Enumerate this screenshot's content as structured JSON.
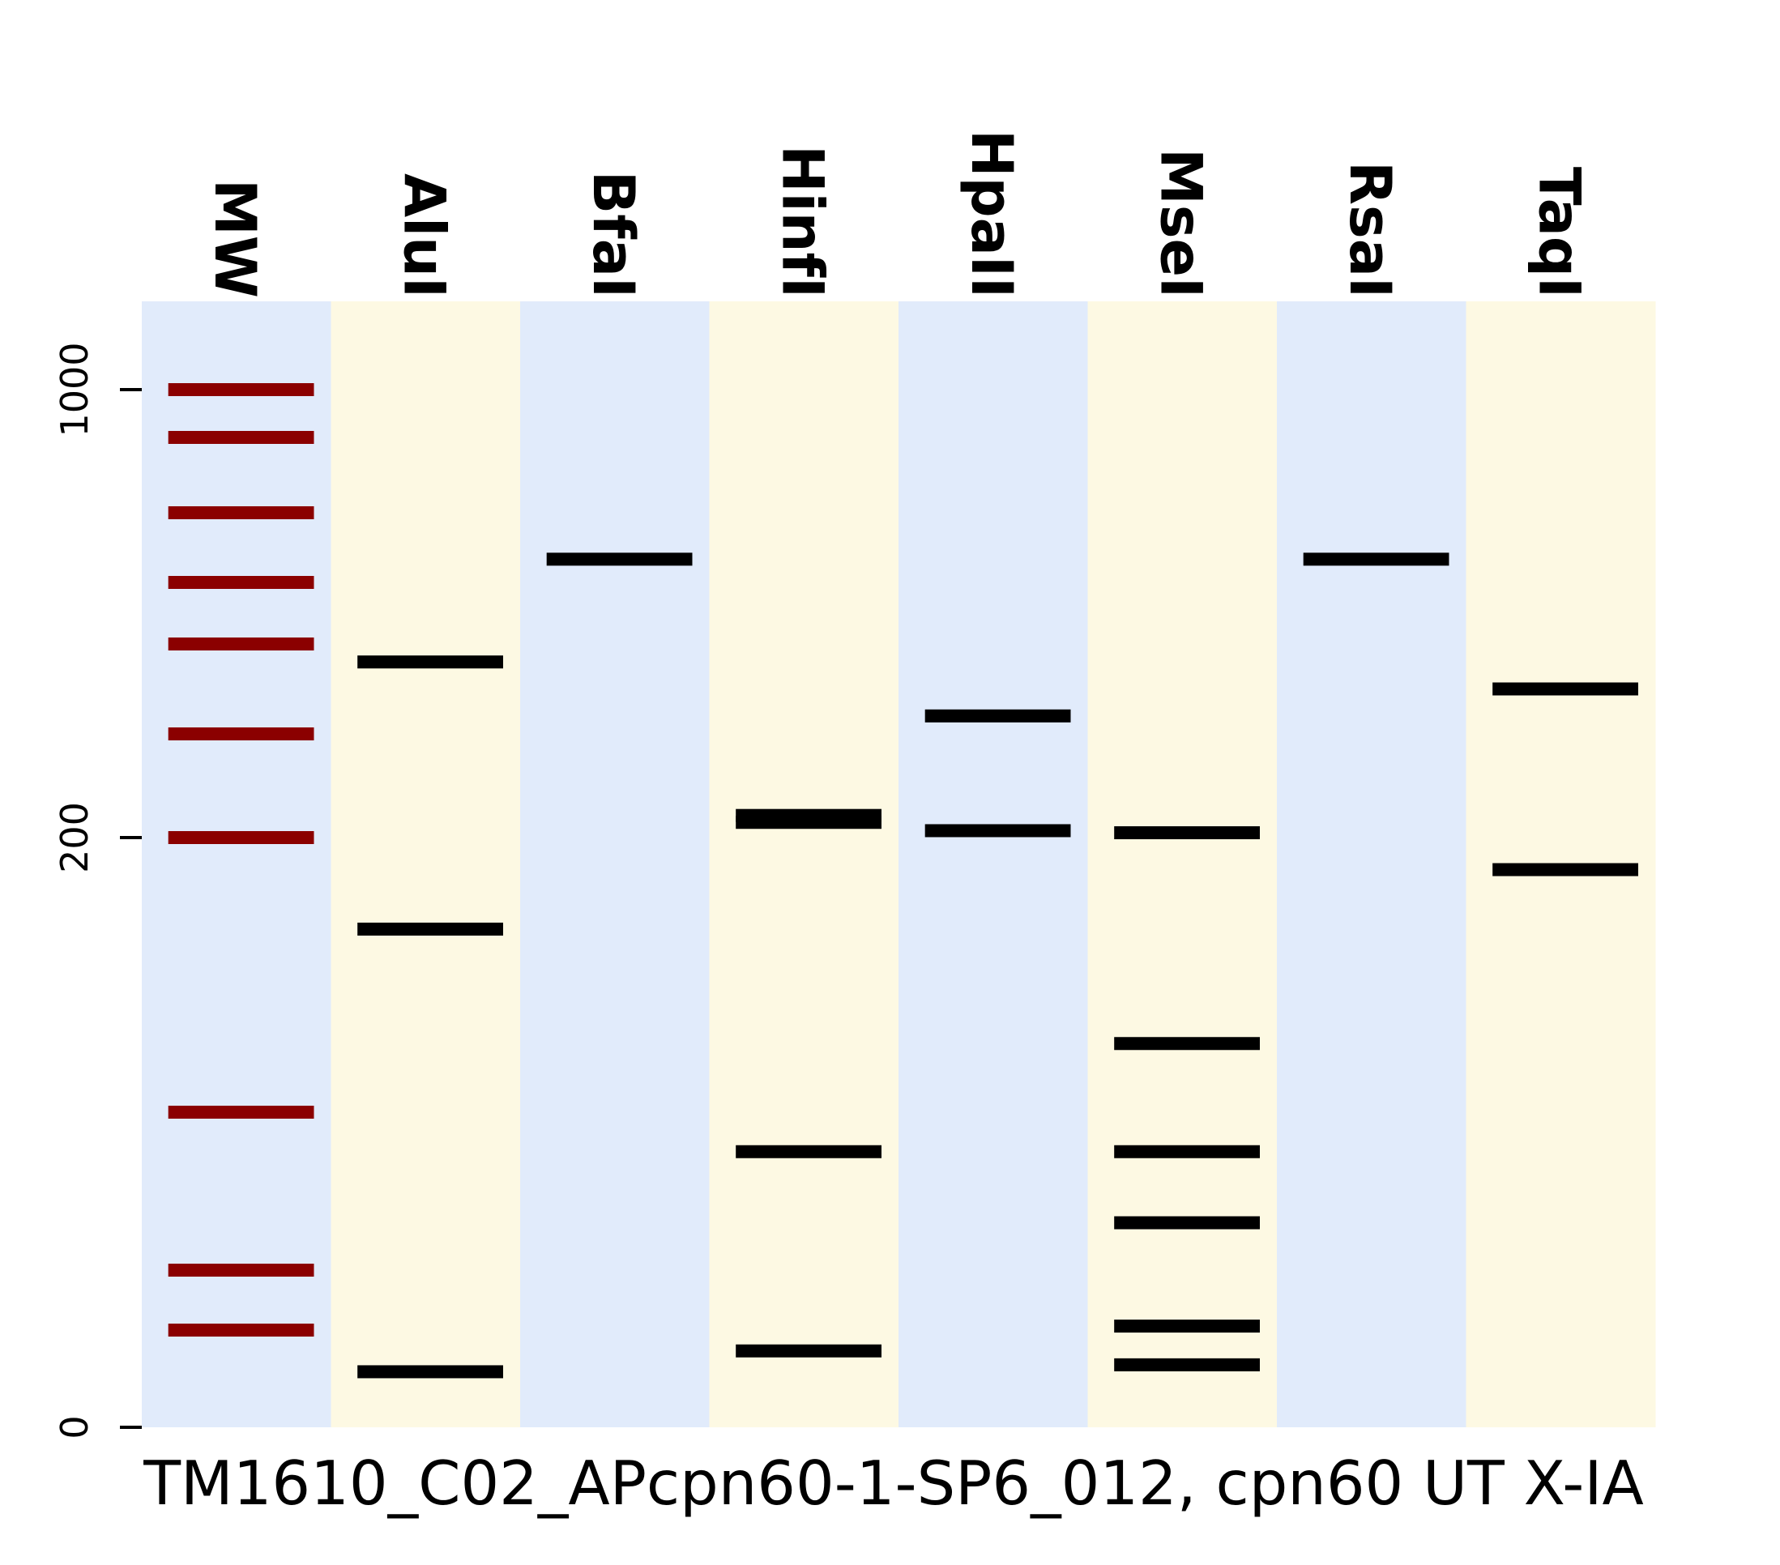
{
  "chart_data": {
    "type": "gel",
    "xlabel": "TM1610_C02_APcpn60-1-SP6_012, cpn60 UT X-IA",
    "ylabel": "",
    "y_ticks": [
      {
        "label": "1000",
        "value": 1000
      },
      {
        "label": "200",
        "value": 200
      },
      {
        "label": "0",
        "value": 0
      }
    ],
    "lanes": [
      {
        "name": "MW",
        "bg": "#e1ebfb",
        "band_color": "#8b0000",
        "bands": [
          1000,
          900,
          700,
          550,
          450,
          350,
          200,
          140,
          100,
          70
        ]
      },
      {
        "name": "AluI",
        "bg": "#fdf9e3",
        "band_color": "#000000",
        "bands": [
          430,
          180,
          40
        ]
      },
      {
        "name": "BfaI",
        "bg": "#e1ebfb",
        "band_color": "#000000",
        "bands": [
          600
        ]
      },
      {
        "name": "HinfI",
        "bg": "#fdf9e3",
        "band_color": "#000000",
        "bands": [
          232,
          222,
          130,
          55
        ]
      },
      {
        "name": "HpaII",
        "bg": "#e1ebfb",
        "band_color": "#000000",
        "bands": [
          370,
          210
        ]
      },
      {
        "name": "MseI",
        "bg": "#fdf9e3",
        "band_color": "#000000",
        "bands": [
          207,
          155,
          130,
          112,
          72,
          45
        ]
      },
      {
        "name": "RsaI",
        "bg": "#e1ebfb",
        "band_color": "#000000",
        "bands": [
          600
        ]
      },
      {
        "name": "TaqI",
        "bg": "#fdf9e3",
        "band_color": "#000000",
        "bands": [
          400,
          193
        ]
      }
    ]
  }
}
